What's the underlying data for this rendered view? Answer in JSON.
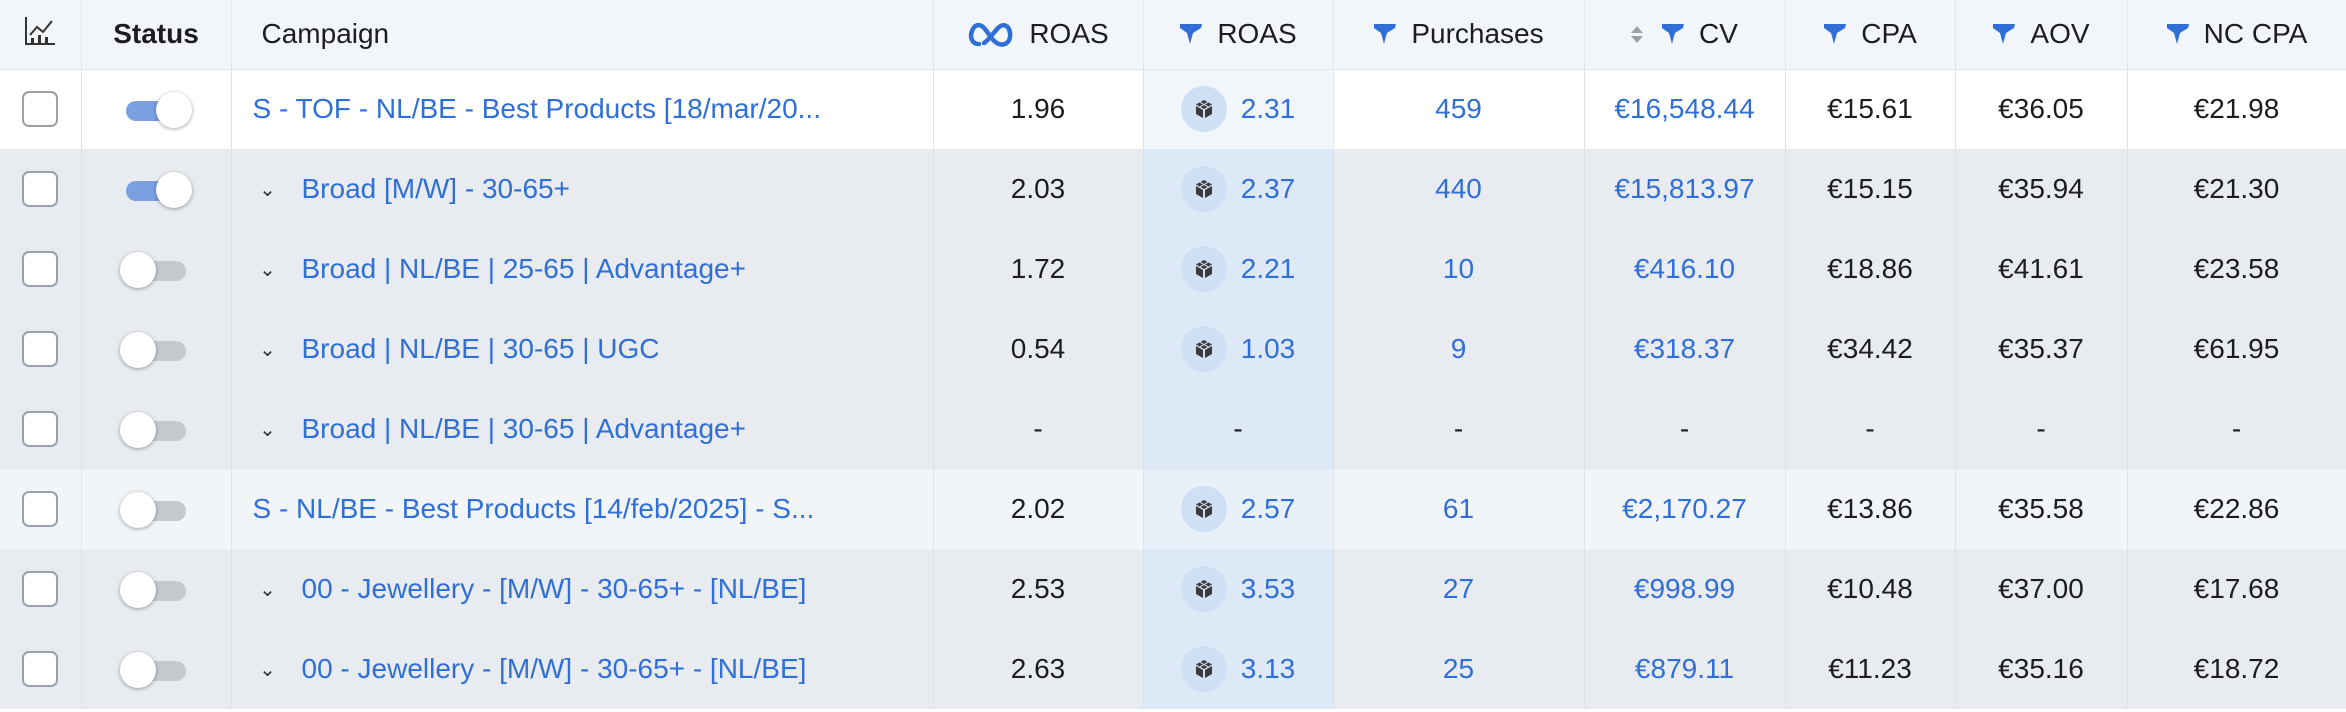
{
  "header": {
    "status": "Status",
    "campaign": "Campaign",
    "meta_roas": "ROAS",
    "roas": "ROAS",
    "purchases": "Purchases",
    "cv": "CV",
    "cpa": "CPA",
    "aov": "AOV",
    "nc_cpa": "NC CPA"
  },
  "icons": {
    "chart": "chart-icon",
    "meta": "meta-logo-icon",
    "funnel": "funnel-icon",
    "cube": "cube-icon",
    "sort": "sort-icon",
    "chevron": "chevron-down-icon"
  },
  "colors": {
    "link_blue": "#2f6fd6",
    "toggle_on": "#7b9fe0",
    "toggle_off": "#c5c9ce",
    "header_bg": "#f3f6f9",
    "row_grey": "#e8ebef"
  },
  "rows": [
    {
      "name": "S - TOF - NL/BE - Best Products [18/mar/20...",
      "level": 0,
      "active": true,
      "meta_roas": "1.96",
      "roas": "2.31",
      "purchases": "459",
      "cv": "€16,548.44",
      "cpa": "€15.61",
      "aov": "€36.05",
      "nc_cpa": "€21.98",
      "style": "white"
    },
    {
      "name": "Broad [M/W] - 30-65+",
      "level": 1,
      "active": true,
      "meta_roas": "2.03",
      "roas": "2.37",
      "purchases": "440",
      "cv": "€15,813.97",
      "cpa": "€15.15",
      "aov": "€35.94",
      "nc_cpa": "€21.30",
      "style": "grey"
    },
    {
      "name": "Broad | NL/BE | 25-65 | Advantage+",
      "level": 1,
      "active": false,
      "meta_roas": "1.72",
      "roas": "2.21",
      "purchases": "10",
      "cv": "€416.10",
      "cpa": "€18.86",
      "aov": "€41.61",
      "nc_cpa": "€23.58",
      "style": "grey"
    },
    {
      "name": "Broad | NL/BE | 30-65 | UGC",
      "level": 1,
      "active": false,
      "meta_roas": "0.54",
      "roas": "1.03",
      "purchases": "9",
      "cv": "€318.37",
      "cpa": "€34.42",
      "aov": "€35.37",
      "nc_cpa": "€61.95",
      "style": "grey"
    },
    {
      "name": "Broad | NL/BE | 30-65 | Advantage+",
      "level": 1,
      "active": false,
      "meta_roas": "-",
      "roas": "-",
      "purchases": "-",
      "cv": "-",
      "cpa": "-",
      "aov": "-",
      "nc_cpa": "-",
      "style": "grey"
    },
    {
      "name": "S - NL/BE - Best Products [14/feb/2025] - S...",
      "level": 0,
      "active": false,
      "meta_roas": "2.02",
      "roas": "2.57",
      "purchases": "61",
      "cv": "€2,170.27",
      "cpa": "€13.86",
      "aov": "€35.58",
      "nc_cpa": "€22.86",
      "style": "light"
    },
    {
      "name": "00 - Jewellery - [M/W] - 30-65+ - [NL/BE]",
      "level": 1,
      "active": false,
      "meta_roas": "2.53",
      "roas": "3.53",
      "purchases": "27",
      "cv": "€998.99",
      "cpa": "€10.48",
      "aov": "€37.00",
      "nc_cpa": "€17.68",
      "style": "grey"
    },
    {
      "name": "00 - Jewellery - [M/W] - 30-65+ - [NL/BE]",
      "level": 1,
      "active": false,
      "meta_roas": "2.63",
      "roas": "3.13",
      "purchases": "25",
      "cv": "€879.11",
      "cpa": "€11.23",
      "aov": "€35.16",
      "nc_cpa": "€18.72",
      "style": "grey"
    }
  ]
}
